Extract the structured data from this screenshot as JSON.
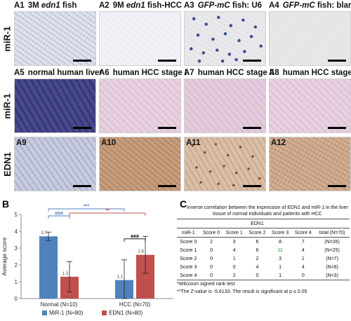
{
  "panels": {
    "A1": {
      "tag": "A1",
      "pre": "3M ",
      "em": "edn1",
      "post": " fish"
    },
    "A2": {
      "tag": "A2",
      "pre": "9M ",
      "em": "edn1",
      "post": " fish-HCC"
    },
    "A3": {
      "tag": "A3",
      "pre": "",
      "em": "GFP-mC",
      "post": " fish: U6"
    },
    "A4": {
      "tag": "A4",
      "pre": "",
      "em": "GFP-mC",
      "post": " fish: blank"
    },
    "A5": {
      "tag": "A5",
      "label": "normal human liver"
    },
    "A6": {
      "tag": "A6",
      "label": "human HCC stage I"
    },
    "A7": {
      "tag": "A7",
      "label": "human HCC stage II"
    },
    "A8": {
      "tag": "A8",
      "label": "human HCC stage III"
    },
    "A9": {
      "tag": "A9"
    },
    "A10": {
      "tag": "A10"
    },
    "A11": {
      "tag": "A11"
    },
    "A12": {
      "tag": "A12"
    }
  },
  "row_labels": {
    "row1": "miR-1",
    "row2": "miR-1",
    "row3": "EDN1"
  },
  "panel_letters": {
    "B": "B",
    "C": "C"
  },
  "chart_data": {
    "type": "bar",
    "categories": [
      "Normal (N=10)",
      "HCC (N=70)"
    ],
    "series": [
      {
        "name": "MiR-1 (N=80)",
        "color": "#4f81bd",
        "values": [
          3.7,
          1.1
        ],
        "errors": [
          0.25,
          1.2
        ]
      },
      {
        "name": "EDN1 (N=80)",
        "color": "#c0504d",
        "values": [
          1.3,
          2.6
        ],
        "errors": [
          0.9,
          1.1
        ]
      }
    ],
    "value_labels": [
      [
        "3.7",
        "1.1"
      ],
      [
        "1.3",
        "2.6"
      ]
    ],
    "ylabel": "Average score",
    "ylim": [
      0,
      5
    ],
    "yticks": [
      "0",
      "1",
      "2",
      "3",
      "4",
      "5"
    ],
    "significance": [
      {
        "label": "###",
        "color": "#4f81bd",
        "between": "Normal MiR-1 vs Normal EDN1"
      },
      {
        "label": "***",
        "color": "#4f81bd",
        "between": "Normal MiR-1 vs HCC MiR-1"
      },
      {
        "label": "**",
        "color": "#c0504d",
        "between": "Normal EDN1 vs HCC EDN1"
      },
      {
        "label": "###",
        "color": "#000000",
        "between": "HCC MiR-1 vs HCC EDN1"
      }
    ],
    "legend_position": "bottom"
  },
  "table": {
    "caption": "Inverse correlation between the expression of EDN1 and miR-1 in the liver tissue of normal individuals and patients with HCC",
    "group_header": "EDN1",
    "headers": [
      "miR-1",
      "Score 0",
      "Score 1",
      "Score 2",
      "Score 3",
      "Score 4",
      "total (N=70)"
    ],
    "rows": [
      [
        "Score 0",
        "2",
        "3",
        "6",
        "8",
        "7",
        "(N=26)"
      ],
      [
        "Score 1",
        "0",
        "4",
        "6",
        "11",
        "4",
        "(N=25)"
      ],
      [
        "Score 2",
        "0",
        "1",
        "2",
        "3",
        "1",
        "(N=7)"
      ],
      [
        "Score 3",
        "0",
        "0",
        "4",
        "1",
        "4",
        "(N=9)"
      ],
      [
        "Score 4",
        "0",
        "2",
        "0",
        "1",
        "0",
        "(N=3)"
      ]
    ],
    "highlight": {
      "row": 1,
      "col": 4,
      "color": "#2e8b2e"
    },
    "footnote1": "*Wilcoxon signed rank test",
    "footnote2": "**The Z-value is -5.6133. The result is significant at p ≤  0.05"
  }
}
